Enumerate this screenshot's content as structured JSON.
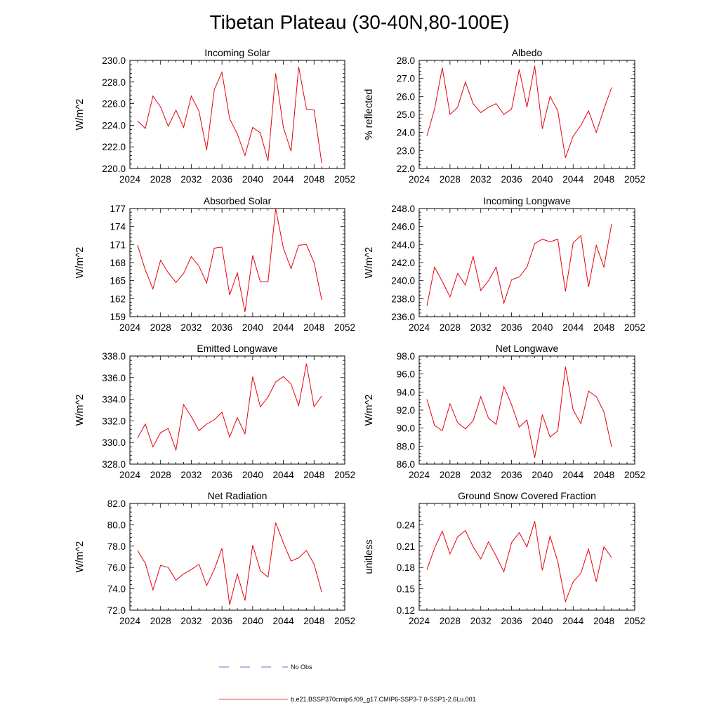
{
  "figure": {
    "title": "Tibetan Plateau (30-40N,80-100E)",
    "legend": [
      {
        "label": "No Obs",
        "color": "#3a3ad0",
        "dash": "dashed"
      },
      {
        "label": "b.e21.BSSP370cmip6.f09_g17.CMIP6-SSP3-7.0-SSP1-2.6Lu.001",
        "color": "#e8000b",
        "dash": "solid"
      }
    ]
  },
  "chart_data": [
    {
      "type": "line",
      "title": "Incoming Solar",
      "ylabel": "W/m^2",
      "xlim": [
        2024,
        2052
      ],
      "ylim": [
        220,
        230
      ],
      "x_ticks": [
        2024,
        2028,
        2032,
        2036,
        2040,
        2044,
        2048,
        2052
      ],
      "y_ticks": [
        "220.0",
        "222.0",
        "224.0",
        "226.0",
        "228.0",
        "230.0"
      ],
      "series_color": "#e8000b",
      "x": [
        2025,
        2026,
        2027,
        2028,
        2029,
        2030,
        2031,
        2032,
        2033,
        2034,
        2035,
        2036,
        2037,
        2038,
        2039,
        2040,
        2041,
        2042,
        2043,
        2044,
        2045,
        2046,
        2047,
        2048,
        2049
      ],
      "values": [
        224.4,
        223.7,
        226.7,
        225.7,
        223.9,
        225.4,
        223.8,
        226.7,
        225.3,
        221.7,
        227.3,
        228.9,
        224.6,
        223.2,
        221.2,
        223.8,
        223.3,
        220.7,
        228.8,
        223.8,
        221.6,
        229.4,
        225.5,
        225.4,
        220.5
      ]
    },
    {
      "type": "line",
      "title": "Albedo",
      "ylabel": "% reflected",
      "xlim": [
        2024,
        2052
      ],
      "ylim": [
        22,
        28
      ],
      "x_ticks": [
        2024,
        2028,
        2032,
        2036,
        2040,
        2044,
        2048,
        2052
      ],
      "y_ticks": [
        "22.0",
        "23.0",
        "24.0",
        "25.0",
        "26.0",
        "27.0",
        "28.0"
      ],
      "series_color": "#e8000b",
      "x": [
        2025,
        2026,
        2027,
        2028,
        2029,
        2030,
        2031,
        2032,
        2033,
        2034,
        2035,
        2036,
        2037,
        2038,
        2039,
        2040,
        2041,
        2042,
        2043,
        2044,
        2045,
        2046,
        2047,
        2048,
        2049
      ],
      "values": [
        23.8,
        25.3,
        27.6,
        25.0,
        25.4,
        26.8,
        25.6,
        25.1,
        25.4,
        25.6,
        25.0,
        25.3,
        27.5,
        25.4,
        27.7,
        24.2,
        26.0,
        25.2,
        22.6,
        23.8,
        24.4,
        25.2,
        24.0,
        25.3,
        26.5
      ]
    },
    {
      "type": "line",
      "title": "Absorbed Solar",
      "ylabel": "W/m^2",
      "xlim": [
        2024,
        2052
      ],
      "ylim": [
        159,
        177
      ],
      "x_ticks": [
        2024,
        2028,
        2032,
        2036,
        2040,
        2044,
        2048,
        2052
      ],
      "y_ticks": [
        "159",
        "162",
        "165",
        "168",
        "171",
        "174",
        "177"
      ],
      "series_color": "#e8000b",
      "x": [
        2025,
        2026,
        2027,
        2028,
        2029,
        2030,
        2031,
        2032,
        2033,
        2034,
        2035,
        2036,
        2037,
        2038,
        2039,
        2040,
        2041,
        2042,
        2043,
        2044,
        2045,
        2046,
        2047,
        2048,
        2049
      ],
      "values": [
        170.9,
        166.8,
        163.6,
        168.4,
        166.3,
        164.7,
        166.2,
        169.0,
        167.4,
        164.6,
        170.4,
        170.6,
        162.6,
        166.3,
        159.8,
        169.2,
        164.8,
        164.8,
        177.0,
        170.4,
        167.0,
        170.9,
        171.0,
        168.0,
        161.8
      ]
    },
    {
      "type": "line",
      "title": "Incoming Longwave",
      "ylabel": "W/m^2",
      "xlim": [
        2024,
        2052
      ],
      "ylim": [
        236,
        248
      ],
      "x_ticks": [
        2024,
        2028,
        2032,
        2036,
        2040,
        2044,
        2048,
        2052
      ],
      "y_ticks": [
        "236.0",
        "238.0",
        "240.0",
        "242.0",
        "244.0",
        "246.0",
        "248.0"
      ],
      "series_color": "#e8000b",
      "x": [
        2025,
        2026,
        2027,
        2028,
        2029,
        2030,
        2031,
        2032,
        2033,
        2034,
        2035,
        2036,
        2037,
        2038,
        2039,
        2040,
        2041,
        2042,
        2043,
        2044,
        2045,
        2046,
        2047,
        2048,
        2049
      ],
      "values": [
        237.2,
        241.5,
        239.9,
        238.2,
        240.8,
        239.5,
        242.7,
        238.9,
        240.0,
        241.5,
        237.5,
        240.1,
        240.4,
        241.5,
        244.1,
        244.6,
        244.3,
        244.6,
        238.8,
        244.2,
        245.0,
        239.3,
        243.9,
        241.5,
        246.3
      ]
    },
    {
      "type": "line",
      "title": "Emitted Longwave",
      "ylabel": "W/m^2",
      "xlim": [
        2024,
        2052
      ],
      "ylim": [
        328,
        338
      ],
      "x_ticks": [
        2024,
        2028,
        2032,
        2036,
        2040,
        2044,
        2048,
        2052
      ],
      "y_ticks": [
        "328.0",
        "330.0",
        "332.0",
        "334.0",
        "336.0",
        "338.0"
      ],
      "series_color": "#e8000b",
      "x": [
        2025,
        2026,
        2027,
        2028,
        2029,
        2030,
        2031,
        2032,
        2033,
        2034,
        2035,
        2036,
        2037,
        2038,
        2039,
        2040,
        2041,
        2042,
        2043,
        2044,
        2045,
        2046,
        2047,
        2048,
        2049
      ],
      "values": [
        330.4,
        331.7,
        329.6,
        330.9,
        331.3,
        329.3,
        333.5,
        332.4,
        331.1,
        331.7,
        332.1,
        332.8,
        330.5,
        332.3,
        330.8,
        336.1,
        333.3,
        334.2,
        335.6,
        336.1,
        335.4,
        333.4,
        337.3,
        333.3,
        334.3
      ]
    },
    {
      "type": "line",
      "title": "Net Longwave",
      "ylabel": "W/m^2",
      "xlim": [
        2024,
        2052
      ],
      "ylim": [
        86,
        98
      ],
      "x_ticks": [
        2024,
        2028,
        2032,
        2036,
        2040,
        2044,
        2048,
        2052
      ],
      "y_ticks": [
        "86.0",
        "88.0",
        "90.0",
        "92.0",
        "94.0",
        "96.0",
        "98.0"
      ],
      "series_color": "#e8000b",
      "x": [
        2025,
        2026,
        2027,
        2028,
        2029,
        2030,
        2031,
        2032,
        2033,
        2034,
        2035,
        2036,
        2037,
        2038,
        2039,
        2040,
        2041,
        2042,
        2043,
        2044,
        2045,
        2046,
        2047,
        2048,
        2049
      ],
      "values": [
        93.2,
        90.3,
        89.7,
        92.7,
        90.6,
        89.9,
        90.8,
        93.5,
        91.1,
        90.4,
        94.6,
        92.6,
        90.1,
        90.9,
        86.7,
        91.5,
        89.0,
        89.7,
        96.8,
        92.0,
        90.5,
        94.1,
        93.5,
        91.8,
        87.9
      ]
    },
    {
      "type": "line",
      "title": "Net Radiation",
      "ylabel": "W/m^2",
      "xlim": [
        2024,
        2052
      ],
      "ylim": [
        72,
        82
      ],
      "x_ticks": [
        2024,
        2028,
        2032,
        2036,
        2040,
        2044,
        2048,
        2052
      ],
      "y_ticks": [
        "72.0",
        "74.0",
        "76.0",
        "78.0",
        "80.0",
        "82.0"
      ],
      "series_color": "#e8000b",
      "x": [
        2025,
        2026,
        2027,
        2028,
        2029,
        2030,
        2031,
        2032,
        2033,
        2034,
        2035,
        2036,
        2037,
        2038,
        2039,
        2040,
        2041,
        2042,
        2043,
        2044,
        2045,
        2046,
        2047,
        2048,
        2049
      ],
      "values": [
        77.6,
        76.4,
        73.9,
        76.2,
        76.0,
        74.8,
        75.4,
        75.8,
        76.3,
        74.3,
        75.8,
        77.8,
        72.5,
        75.4,
        72.9,
        78.1,
        75.7,
        75.1,
        80.2,
        78.3,
        76.6,
        76.9,
        77.6,
        76.3,
        73.7
      ]
    },
    {
      "type": "line",
      "title": "Ground Snow Covered Fraction",
      "ylabel": "unitless",
      "xlim": [
        2024,
        2052
      ],
      "ylim": [
        0.12,
        0.27
      ],
      "x_ticks": [
        2024,
        2028,
        2032,
        2036,
        2040,
        2044,
        2048,
        2052
      ],
      "y_ticks": [
        "0.12",
        "0.15",
        "0.18",
        "0.21",
        "0.24"
      ],
      "y_tick_values": [
        0.12,
        0.15,
        0.18,
        0.21,
        0.24
      ],
      "series_color": "#e8000b",
      "x": [
        2025,
        2026,
        2027,
        2028,
        2029,
        2030,
        2031,
        2032,
        2033,
        2034,
        2035,
        2036,
        2037,
        2038,
        2039,
        2040,
        2041,
        2042,
        2043,
        2044,
        2045,
        2046,
        2047,
        2048,
        2049
      ],
      "values": [
        0.177,
        0.207,
        0.231,
        0.199,
        0.223,
        0.232,
        0.209,
        0.192,
        0.216,
        0.196,
        0.174,
        0.215,
        0.229,
        0.209,
        0.245,
        0.176,
        0.224,
        0.188,
        0.132,
        0.16,
        0.172,
        0.206,
        0.16,
        0.209,
        0.194
      ]
    }
  ]
}
